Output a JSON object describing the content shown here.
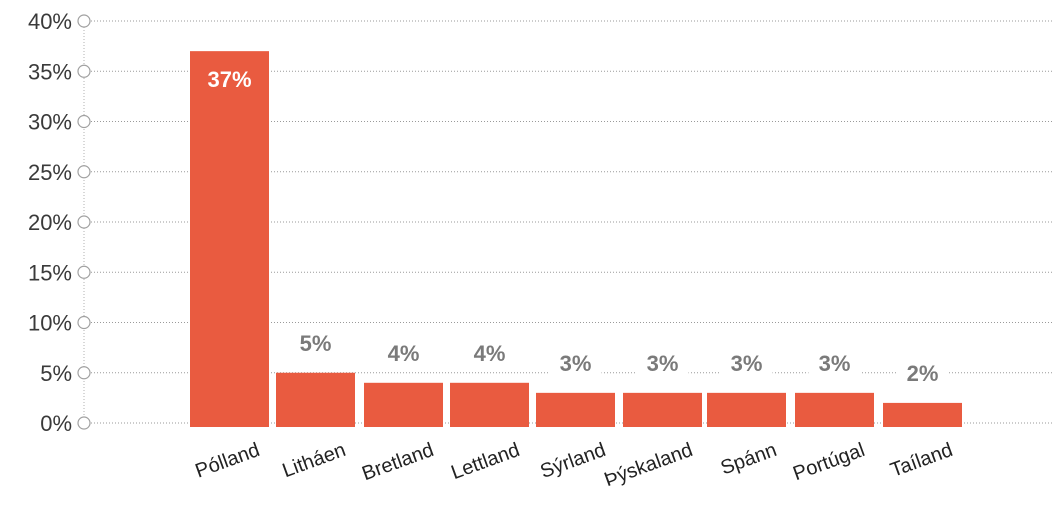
{
  "colors": {
    "bar": "#E95B40",
    "label_outside": "#7a7a7a",
    "label_inside": "#ffffff",
    "grid": "#9a9a9a"
  },
  "chart_data": {
    "type": "bar",
    "categories": [
      "Pólland",
      "Litháen",
      "Bretland",
      "Lettland",
      "Sýrland",
      "Þýskaland",
      "Spánn",
      "Portúgal",
      "Taíland"
    ],
    "values": [
      37,
      5,
      4,
      4,
      3,
      3,
      3,
      3,
      2
    ],
    "data_labels": [
      "37%",
      "5%",
      "4%",
      "4%",
      "3%",
      "3%",
      "3%",
      "3%",
      "2%"
    ],
    "y_ticks": [
      0,
      5,
      10,
      15,
      20,
      25,
      30,
      35,
      40
    ],
    "y_tick_labels": [
      "0%",
      "5%",
      "10%",
      "15%",
      "20%",
      "25%",
      "30%",
      "35%",
      "40%"
    ],
    "ylim": [
      0,
      40
    ],
    "grid": true,
    "x_labels_rotated": true
  }
}
